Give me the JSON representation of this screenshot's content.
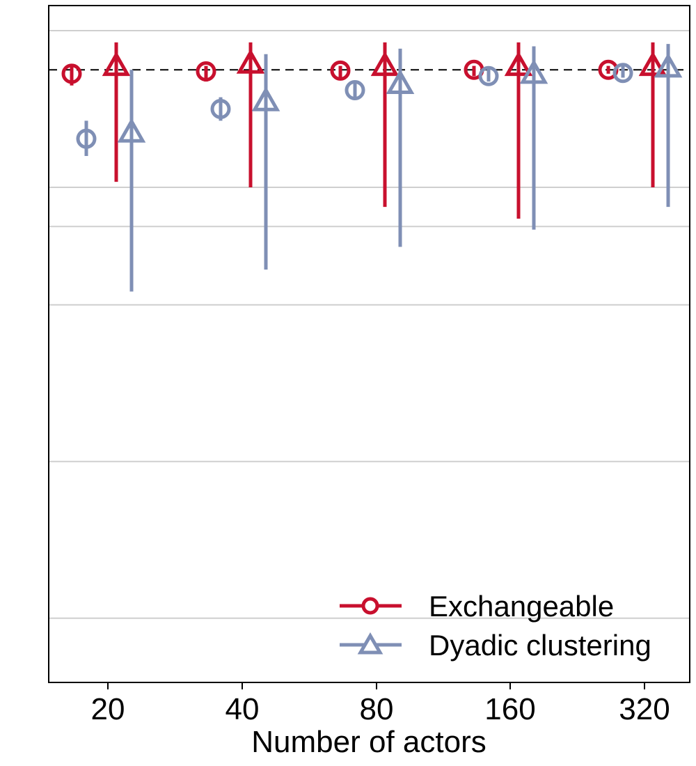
{
  "chart_data": {
    "type": "interval-plot",
    "title": "",
    "xlabel": "Number of actors",
    "ylabel": "",
    "categories": [
      "20",
      "40",
      "80",
      "160",
      "320"
    ],
    "ylim": [
      0,
      1.05
    ],
    "y_gridlines": [
      0.05,
      0.25,
      0.45,
      0.65,
      0.75,
      0.8,
      1.0
    ],
    "reference_line": {
      "y": 0.95,
      "style": "dashed",
      "color": "#000000"
    },
    "series": [
      {
        "name": "Exchangeable",
        "color": "#c8102e",
        "markers": [
          {
            "name": "circle",
            "estimates": [
              0.945,
              0.948,
              0.949,
              0.95,
              0.95
            ],
            "lower": [
              0.93,
              0.935,
              0.94,
              0.942,
              0.945
            ],
            "upper": [
              0.955,
              0.955,
              0.955,
              0.955,
              0.955
            ]
          },
          {
            "name": "triangle",
            "estimates": [
              0.955,
              0.958,
              0.955,
              0.955,
              0.955
            ],
            "lower": [
              0.807,
              0.8,
              0.775,
              0.76,
              0.8
            ],
            "upper": [
              0.985,
              0.985,
              0.985,
              0.985,
              0.985
            ]
          }
        ]
      },
      {
        "name": "Dyadic clustering",
        "color": "#7f8fb5",
        "markers": [
          {
            "name": "circle",
            "estimates": [
              0.862,
              0.9,
              0.924,
              0.942,
              0.946
            ],
            "lower": [
              0.84,
              0.885,
              0.912,
              0.935,
              0.94
            ],
            "upper": [
              0.885,
              0.915,
              0.935,
              0.952,
              0.955
            ]
          },
          {
            "name": "triangle",
            "estimates": [
              0.87,
              0.91,
              0.932,
              0.945,
              0.953
            ],
            "lower": [
              0.667,
              0.695,
              0.724,
              0.746,
              0.775
            ],
            "upper": [
              0.95,
              0.97,
              0.977,
              0.98,
              0.983
            ]
          }
        ]
      }
    ],
    "legend": {
      "position": "bottom-right",
      "entries": [
        "Exchangeable",
        "Dyadic clustering"
      ]
    }
  }
}
